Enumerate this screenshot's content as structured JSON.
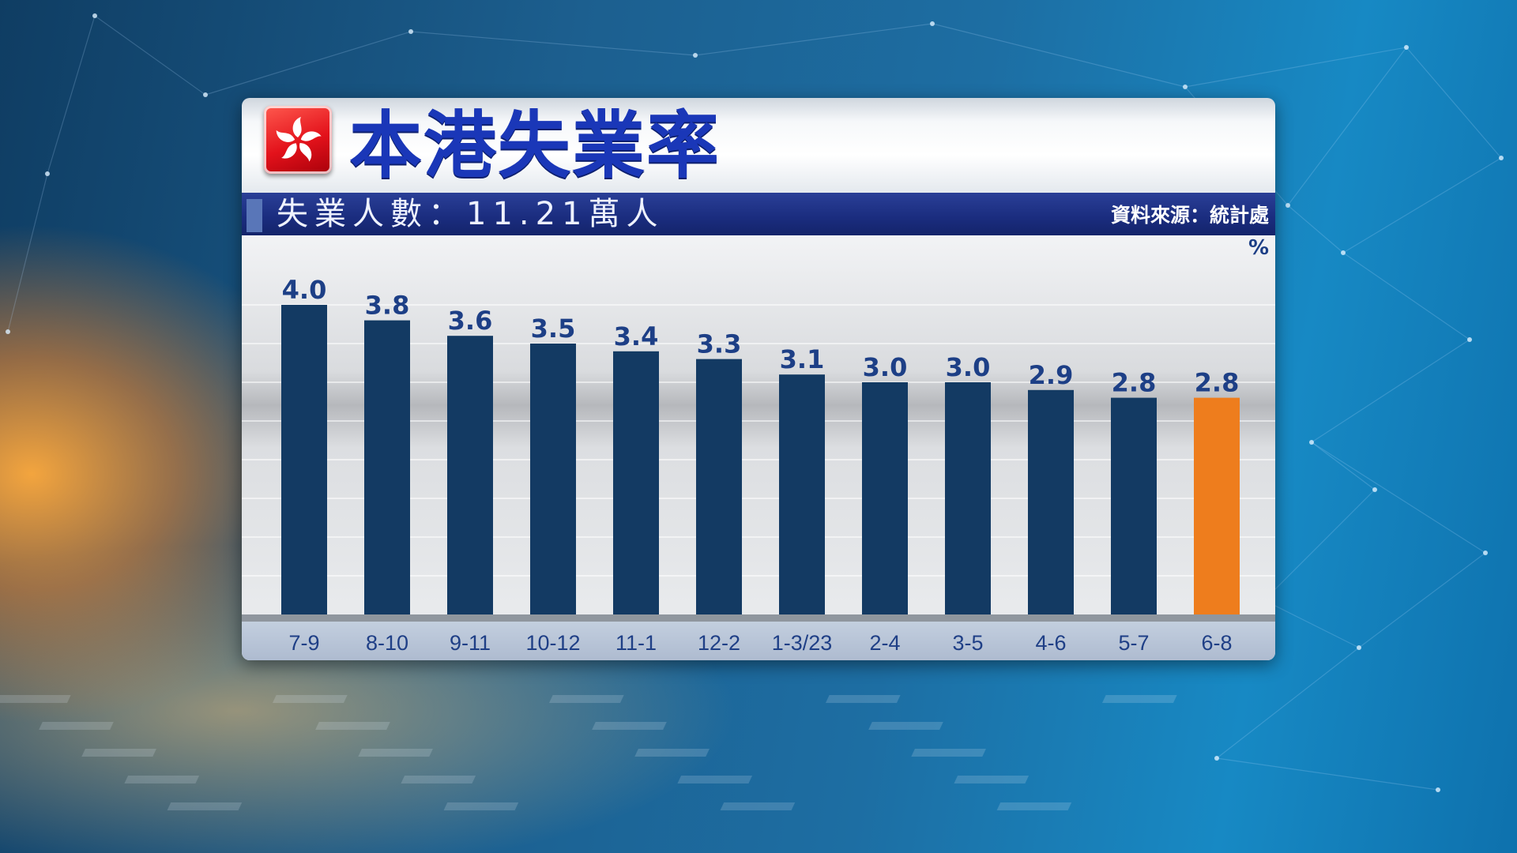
{
  "header": {
    "title": "本港失業率",
    "subtitle": "失業人數：11.21萬人",
    "source": "資料來源：統計處"
  },
  "colors": {
    "bar": "#133a63",
    "highlight_bar": "#ee7d1d",
    "value_label": "#1d3f86",
    "title": "#1a37b8"
  },
  "chart_data": {
    "type": "bar",
    "title": "本港失業率",
    "unit_label": "%",
    "categories": [
      "7-9",
      "8-10",
      "9-11",
      "10-12",
      "11-1",
      "12-2",
      "1-3/23",
      "2-4",
      "3-5",
      "4-6",
      "5-7",
      "6-8"
    ],
    "values": [
      4.0,
      3.8,
      3.6,
      3.5,
      3.4,
      3.3,
      3.1,
      3.0,
      3.0,
      2.9,
      2.8,
      2.8
    ],
    "value_labels": [
      "4.0",
      "3.8",
      "3.6",
      "3.5",
      "3.4",
      "3.3",
      "3.1",
      "3.0",
      "3.0",
      "2.9",
      "2.8",
      "2.8"
    ],
    "highlight_index": 11,
    "ylim": [
      0,
      4.0
    ],
    "grid": true,
    "legend": false
  }
}
